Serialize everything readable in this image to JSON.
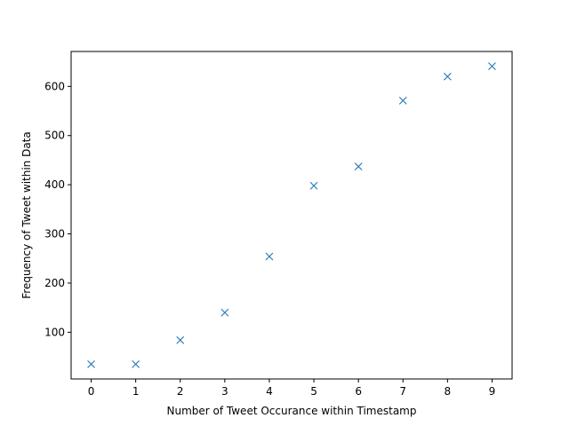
{
  "chart_data": {
    "type": "scatter",
    "title": "",
    "xlabel": "Number of Tweet Occurance within Timestamp",
    "ylabel": "Frequency of Tweet within Data",
    "x": [
      0,
      1,
      2,
      3,
      4,
      5,
      6,
      7,
      8,
      9
    ],
    "y": [
      35,
      35,
      84,
      140,
      254,
      398,
      437,
      571,
      620,
      641
    ],
    "xlim": [
      -0.45,
      9.45
    ],
    "ylim": [
      5,
      671
    ],
    "xticks": [
      "0",
      "1",
      "2",
      "3",
      "4",
      "5",
      "6",
      "7",
      "8",
      "9"
    ],
    "yticks": [
      "100",
      "200",
      "300",
      "400",
      "500",
      "600"
    ],
    "marker": "x",
    "color": "#1f77b4",
    "grid": false
  }
}
